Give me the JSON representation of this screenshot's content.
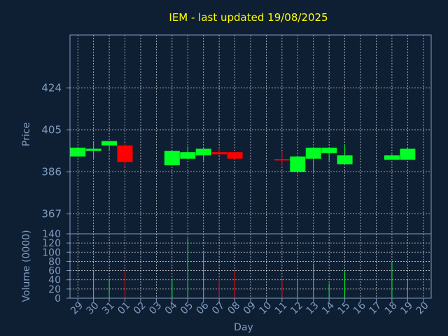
{
  "chart_data": {
    "type": "candlestick",
    "title": "IEM - last updated 19/08/2025",
    "xlabel": "Day",
    "ylabel": "Price",
    "volume_label": "Volume (0000)",
    "price_ticks": [
      "424",
      "405",
      "386",
      "367"
    ],
    "price_tick_values": [
      424,
      405,
      386,
      367
    ],
    "volume_ticks": [
      "0",
      "20",
      "40",
      "60",
      "80",
      "100",
      "120",
      "140"
    ],
    "volume_tick_values": [
      0,
      20,
      40,
      60,
      80,
      100,
      120,
      140
    ],
    "price_range": [
      358,
      448
    ],
    "volume_range": [
      0,
      140
    ],
    "x_labels": [
      "29",
      "30",
      "31",
      "01",
      "02",
      "03",
      "04",
      "05",
      "06",
      "07",
      "08",
      "09",
      "10",
      "11",
      "12",
      "13",
      "14",
      "15",
      "16",
      "17",
      "18",
      "19",
      "20"
    ],
    "grid": true,
    "colors": {
      "background": "#0f1f33",
      "grid": "#ffffff",
      "axis_text": "#7f9cc0",
      "title": "#ffff00",
      "up": "#00ff22",
      "down": "#ff0000",
      "cross": "#ffffff"
    },
    "candles": [
      {
        "day": "29",
        "open": 393,
        "close": 397,
        "high": 397,
        "low": 393,
        "volume": 0
      },
      {
        "day": "30",
        "open": 395.5,
        "close": 396.5,
        "high": 400,
        "low": 392,
        "volume": 60
      },
      {
        "day": "31",
        "open": 398,
        "close": 400,
        "high": 400,
        "low": 396,
        "volume": 42
      },
      {
        "day": "01",
        "open": 398,
        "close": 390.5,
        "high": 399,
        "low": 388.5,
        "volume": 60
      },
      {
        "day": "04",
        "open": 389,
        "close": 395.5,
        "high": 395.5,
        "low": 389,
        "volume": 42
      },
      {
        "day": "05",
        "open": 392,
        "close": 395,
        "high": 397.5,
        "low": 392,
        "volume": 130
      },
      {
        "day": "06",
        "open": 393.5,
        "close": 396.5,
        "high": 397,
        "low": 391,
        "volume": 100
      },
      {
        "day": "07",
        "open": 395,
        "close": 394,
        "high": 397,
        "low": 393.5,
        "volume": 43
      },
      {
        "day": "08",
        "open": 395,
        "close": 392,
        "high": 395,
        "low": 392,
        "volume": 60
      },
      {
        "day": "11",
        "open": 391.5,
        "close": 391,
        "high": 395.5,
        "low": 389,
        "volume": 40
      },
      {
        "day": "12",
        "open": 386,
        "close": 393,
        "high": 393,
        "low": 386,
        "volume": 40
      },
      {
        "day": "13",
        "open": 392,
        "close": 397,
        "high": 397,
        "low": 386,
        "volume": 75
      },
      {
        "day": "14",
        "open": 394.5,
        "close": 397,
        "high": 397,
        "low": 390.5,
        "volume": 32
      },
      {
        "day": "15",
        "open": 389.5,
        "close": 393.5,
        "high": 398.5,
        "low": 389.5,
        "volume": 60
      },
      {
        "day": "18",
        "open": 391.5,
        "close": 393.5,
        "high": 394,
        "low": 391.5,
        "volume": 78
      },
      {
        "day": "19",
        "open": 391.5,
        "close": 396.5,
        "high": 397,
        "low": 391.5,
        "volume": 42
      }
    ]
  }
}
